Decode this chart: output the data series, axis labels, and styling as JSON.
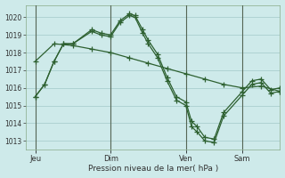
{
  "background_color": "#ceeaea",
  "grid_color": "#aacece",
  "line_color": "#2d6030",
  "title": "Pression niveau de la mer( hPa )",
  "ylim": [
    1012.5,
    1020.7
  ],
  "yticks": [
    1013,
    1014,
    1015,
    1016,
    1017,
    1018,
    1019,
    1020
  ],
  "xtick_labels": [
    "Jeu",
    "Dim",
    "Ven",
    "Sam"
  ],
  "xtick_positions": [
    0,
    4,
    8,
    11
  ],
  "xlim": [
    -0.5,
    13.0
  ],
  "vline_positions": [
    0,
    4,
    8,
    11
  ],
  "series1_x": [
    0,
    0.5,
    1,
    1.5,
    2,
    3,
    3.5,
    4,
    4.5,
    5,
    5.3,
    5.7,
    6,
    6.5,
    7,
    7.5,
    8,
    8.3,
    8.6,
    9,
    9.5,
    10,
    11,
    11.5,
    12,
    12.5,
    13
  ],
  "series1_y": [
    1015.5,
    1016.2,
    1017.5,
    1018.5,
    1018.5,
    1019.3,
    1019.1,
    1019.0,
    1019.8,
    1020.2,
    1020.1,
    1019.3,
    1018.7,
    1017.9,
    1016.6,
    1015.5,
    1015.2,
    1014.1,
    1013.8,
    1013.2,
    1013.1,
    1014.6,
    1015.8,
    1016.4,
    1016.5,
    1015.9,
    1016.0
  ],
  "series2_x": [
    0,
    0.5,
    1,
    1.5,
    2,
    3,
    3.5,
    4,
    4.5,
    5,
    5.3,
    5.7,
    6,
    6.5,
    7,
    7.5,
    8,
    8.3,
    8.6,
    9,
    9.5,
    10,
    11,
    11.5,
    12,
    12.5,
    13
  ],
  "series2_y": [
    1015.5,
    1016.2,
    1017.5,
    1018.5,
    1018.5,
    1019.2,
    1019.0,
    1018.9,
    1019.7,
    1020.1,
    1020.0,
    1019.1,
    1018.5,
    1017.7,
    1016.4,
    1015.3,
    1015.0,
    1013.8,
    1013.5,
    1013.0,
    1012.9,
    1014.4,
    1015.6,
    1016.2,
    1016.3,
    1015.7,
    1015.8
  ],
  "series3_x": [
    0,
    1,
    2,
    3,
    4,
    5,
    6,
    7,
    8,
    9,
    10,
    11,
    12,
    13
  ],
  "series3_y": [
    1017.5,
    1018.5,
    1018.4,
    1018.2,
    1018.0,
    1017.7,
    1017.4,
    1017.1,
    1016.8,
    1016.5,
    1016.2,
    1016.0,
    1016.1,
    1015.8
  ]
}
